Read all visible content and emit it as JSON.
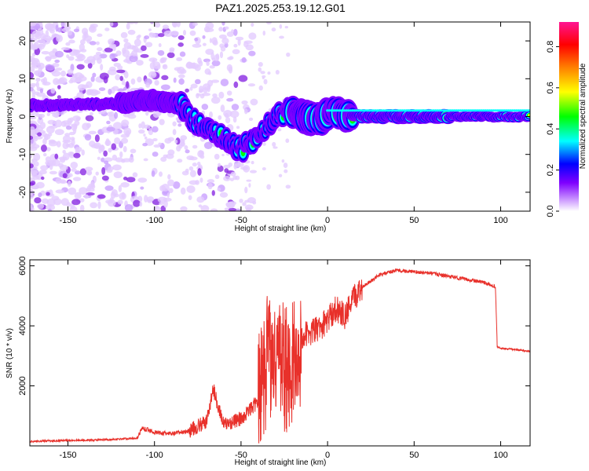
{
  "title": "PAZ1.2025.253.19.12.G01",
  "chart_data": [
    {
      "type": "heatmap",
      "xlabel": "Height of straight line (km)",
      "ylabel": "Frequency (Hz)",
      "xlim": [
        -172,
        117
      ],
      "ylim": [
        -25,
        25
      ],
      "xticks": [
        -150,
        -100,
        -50,
        0,
        50,
        100
      ],
      "yticks": [
        -20,
        -10,
        0,
        10,
        20
      ],
      "xtick_labels": [
        "-150",
        "-100",
        "-50",
        "0",
        "50",
        "100"
      ],
      "ytick_labels": [
        "-20",
        "-10",
        "0",
        "10",
        "20"
      ],
      "colorbar": {
        "label": "Normalized spectral amplitude",
        "range": [
          0,
          0.92
        ],
        "ticks": [
          0.0,
          0.2,
          0.4,
          0.6,
          0.8
        ],
        "tick_labels": [
          "0.0",
          "0.2",
          "0.4",
          "0.6",
          "0.8"
        ],
        "colors": [
          "#ffffff",
          "#cc99ff",
          "#7f00ff",
          "#0000ff",
          "#00ffff",
          "#00ff00",
          "#ffff00",
          "#ff7f00",
          "#ff0000",
          "#ff1493"
        ]
      },
      "ridge": [
        {
          "x": -172,
          "y": 3
        },
        {
          "x": -150,
          "y": 3
        },
        {
          "x": -120,
          "y": 3.5
        },
        {
          "x": -100,
          "y": 4.5
        },
        {
          "x": -85,
          "y": 3
        },
        {
          "x": -75,
          "y": -2
        },
        {
          "x": -62,
          "y": -5
        },
        {
          "x": -50,
          "y": -9
        },
        {
          "x": -42,
          "y": -6
        },
        {
          "x": -32,
          "y": -1
        },
        {
          "x": -22,
          "y": 2
        },
        {
          "x": -15,
          "y": 0
        },
        {
          "x": -5,
          "y": -1
        },
        {
          "x": 3,
          "y": 2
        },
        {
          "x": 12,
          "y": 0
        },
        {
          "x": 50,
          "y": 0
        },
        {
          "x": 117,
          "y": 0
        }
      ]
    },
    {
      "type": "line",
      "xlabel": "Height of straight line (km)",
      "ylabel": "SNR (10 * v/v)",
      "xlim": [
        -172,
        117
      ],
      "ylim": [
        0,
        6200
      ],
      "xticks": [
        -150,
        -100,
        -50,
        0,
        50,
        100
      ],
      "yticks": [
        2000,
        4000,
        6000
      ],
      "xtick_labels": [
        "-150",
        "-100",
        "-50",
        "0",
        "50",
        "100"
      ],
      "ytick_labels": [
        "2000",
        "4000",
        "6000"
      ],
      "color": "#e8302a",
      "series": [
        {
          "name": "SNR",
          "x": [
            -172,
            -150,
            -130,
            -110,
            -107,
            -100,
            -90,
            -80,
            -70,
            -66,
            -60,
            -50,
            -40,
            -35,
            -30,
            -25,
            -20,
            -15,
            -10,
            -5,
            0,
            5,
            10,
            15,
            20,
            30,
            40,
            50,
            60,
            70,
            80,
            90,
            97,
            98,
            100,
            110,
            117
          ],
          "y": [
            150,
            180,
            200,
            260,
            600,
            450,
            400,
            500,
            800,
            1900,
            700,
            900,
            1500,
            2800,
            3200,
            2500,
            2800,
            3600,
            3800,
            3900,
            4200,
            4600,
            4300,
            4900,
            5300,
            5700,
            5850,
            5800,
            5750,
            5650,
            5550,
            5450,
            5300,
            3300,
            3250,
            3200,
            3150
          ]
        }
      ]
    }
  ]
}
